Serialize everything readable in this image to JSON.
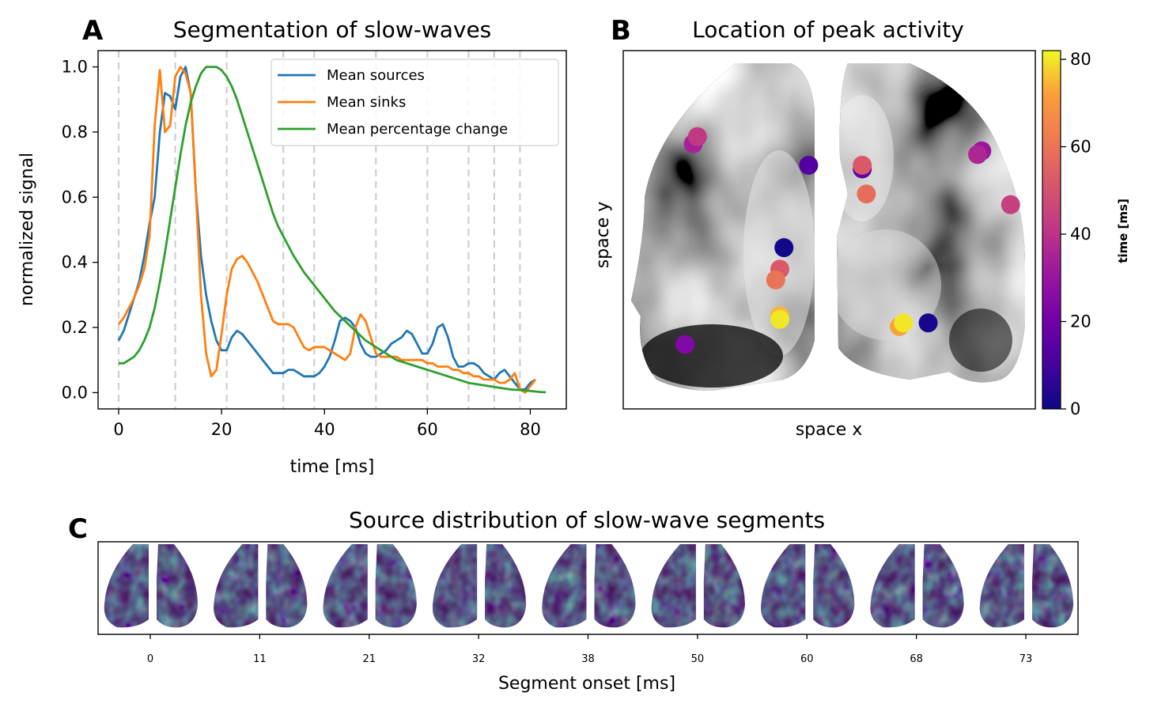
{
  "panels": {
    "a": {
      "letter": "A",
      "title": "Segmentation of slow-waves"
    },
    "b": {
      "letter": "B",
      "title": "Location of peak activity"
    },
    "c": {
      "letter": "C",
      "title": "Source distribution of slow-wave segments"
    }
  },
  "chart_data": [
    {
      "type": "line",
      "title": "Segmentation of slow-waves",
      "xlabel": "time [ms]",
      "ylabel": "normalized signal",
      "xlim": [
        -4,
        87
      ],
      "ylim": [
        -0.05,
        1.05
      ],
      "xticks": [
        0,
        20,
        40,
        60,
        80
      ],
      "xtick_labels": [
        "0",
        "20",
        "40",
        "60",
        "80"
      ],
      "yticks": [
        0.0,
        0.2,
        0.4,
        0.6,
        0.8,
        1.0
      ],
      "ytick_labels": [
        "0.0",
        "0.2",
        "0.4",
        "0.6",
        "0.8",
        "1.0"
      ],
      "segment_onsets": [
        0,
        11,
        21,
        32,
        38,
        50,
        60,
        68,
        73,
        78
      ],
      "legend_position": "top-right",
      "series": [
        {
          "name": "Mean sources",
          "color": "#1f77b4",
          "x": [
            0,
            1,
            2,
            3,
            4,
            5,
            6,
            7,
            8,
            9,
            10,
            11,
            12,
            13,
            14,
            15,
            16,
            17,
            18,
            19,
            20,
            21,
            22,
            23,
            24,
            25,
            26,
            27,
            28,
            29,
            30,
            31,
            32,
            33,
            34,
            35,
            36,
            37,
            38,
            39,
            40,
            41,
            42,
            43,
            44,
            45,
            46,
            47,
            48,
            49,
            50,
            51,
            52,
            53,
            54,
            55,
            56,
            57,
            58,
            59,
            60,
            61,
            62,
            63,
            64,
            65,
            66,
            67,
            68,
            69,
            70,
            71,
            72,
            73,
            74,
            75,
            76,
            77,
            78,
            79,
            80,
            81
          ],
          "y": [
            0.16,
            0.19,
            0.24,
            0.29,
            0.34,
            0.42,
            0.52,
            0.6,
            0.8,
            0.92,
            0.91,
            0.87,
            0.97,
            1.0,
            0.92,
            0.62,
            0.42,
            0.3,
            0.22,
            0.16,
            0.13,
            0.13,
            0.17,
            0.19,
            0.18,
            0.16,
            0.14,
            0.12,
            0.1,
            0.08,
            0.06,
            0.06,
            0.06,
            0.07,
            0.07,
            0.06,
            0.05,
            0.05,
            0.05,
            0.06,
            0.08,
            0.11,
            0.16,
            0.22,
            0.23,
            0.22,
            0.2,
            0.15,
            0.12,
            0.11,
            0.11,
            0.12,
            0.13,
            0.15,
            0.16,
            0.17,
            0.19,
            0.18,
            0.15,
            0.12,
            0.12,
            0.15,
            0.2,
            0.21,
            0.17,
            0.11,
            0.08,
            0.08,
            0.09,
            0.09,
            0.08,
            0.06,
            0.05,
            0.04,
            0.06,
            0.07,
            0.05,
            0.03,
            0.01,
            0.01,
            0.03,
            0.04
          ]
        },
        {
          "name": "Mean sinks",
          "color": "#ff7f0e",
          "x": [
            0,
            1,
            2,
            3,
            4,
            5,
            6,
            7,
            8,
            9,
            10,
            11,
            12,
            13,
            14,
            15,
            16,
            17,
            18,
            19,
            20,
            21,
            22,
            23,
            24,
            25,
            26,
            27,
            28,
            29,
            30,
            31,
            32,
            33,
            34,
            35,
            36,
            37,
            38,
            39,
            40,
            41,
            42,
            43,
            44,
            45,
            46,
            47,
            48,
            49,
            50,
            51,
            52,
            53,
            54,
            55,
            56,
            57,
            58,
            59,
            60,
            61,
            62,
            63,
            64,
            65,
            66,
            67,
            68,
            69,
            70,
            71,
            72,
            73,
            74,
            75,
            76,
            77,
            78,
            79,
            80,
            81
          ],
          "y": [
            0.21,
            0.23,
            0.26,
            0.29,
            0.33,
            0.38,
            0.48,
            0.82,
            0.99,
            0.8,
            0.82,
            0.97,
            1.0,
            0.98,
            0.92,
            0.62,
            0.3,
            0.12,
            0.05,
            0.07,
            0.18,
            0.3,
            0.38,
            0.41,
            0.42,
            0.4,
            0.37,
            0.34,
            0.3,
            0.26,
            0.22,
            0.21,
            0.21,
            0.21,
            0.2,
            0.17,
            0.14,
            0.13,
            0.14,
            0.14,
            0.14,
            0.13,
            0.12,
            0.11,
            0.1,
            0.12,
            0.2,
            0.24,
            0.22,
            0.17,
            0.12,
            0.11,
            0.11,
            0.11,
            0.11,
            0.1,
            0.1,
            0.1,
            0.1,
            0.1,
            0.09,
            0.09,
            0.08,
            0.08,
            0.08,
            0.07,
            0.07,
            0.06,
            0.06,
            0.05,
            0.05,
            0.04,
            0.04,
            0.04,
            0.03,
            0.03,
            0.04,
            0.06,
            0.01,
            0.0,
            0.02,
            0.04
          ]
        },
        {
          "name": "Mean percentage change",
          "color": "#2ca02c",
          "x": [
            0,
            1,
            2,
            3,
            4,
            5,
            6,
            7,
            8,
            9,
            10,
            11,
            12,
            13,
            14,
            15,
            16,
            17,
            18,
            19,
            20,
            21,
            22,
            23,
            24,
            25,
            26,
            27,
            28,
            29,
            30,
            31,
            32,
            33,
            34,
            36,
            38,
            40,
            42,
            44,
            46,
            48,
            50,
            52,
            54,
            56,
            58,
            60,
            62,
            64,
            66,
            68,
            70,
            72,
            74,
            76,
            78,
            80,
            82,
            83
          ],
          "y": [
            0.09,
            0.09,
            0.1,
            0.11,
            0.13,
            0.16,
            0.2,
            0.26,
            0.34,
            0.43,
            0.53,
            0.63,
            0.73,
            0.82,
            0.89,
            0.94,
            0.98,
            1.0,
            1.0,
            1.0,
            0.99,
            0.97,
            0.94,
            0.9,
            0.85,
            0.8,
            0.75,
            0.7,
            0.65,
            0.6,
            0.55,
            0.51,
            0.48,
            0.45,
            0.42,
            0.37,
            0.33,
            0.29,
            0.25,
            0.22,
            0.19,
            0.16,
            0.14,
            0.12,
            0.1,
            0.09,
            0.08,
            0.07,
            0.06,
            0.05,
            0.04,
            0.03,
            0.025,
            0.02,
            0.015,
            0.01,
            0.008,
            0.005,
            0.002,
            0.001
          ]
        }
      ]
    },
    {
      "type": "scatter",
      "title": "Location of peak activity",
      "xlabel": "space x",
      "ylabel": "space y",
      "xlim": [
        0,
        1
      ],
      "ylim": [
        0,
        1
      ],
      "colorbar": {
        "label": "time [ms]",
        "colormap": "plasma",
        "range": [
          0,
          82
        ],
        "ticks": [
          0,
          20,
          40,
          60,
          80
        ],
        "tick_labels": [
          "0",
          "20",
          "40",
          "60",
          "80"
        ]
      },
      "points": [
        {
          "x": 0.17,
          "y": 0.74,
          "t": 34
        },
        {
          "x": 0.18,
          "y": 0.76,
          "t": 42
        },
        {
          "x": 0.45,
          "y": 0.68,
          "t": 13
        },
        {
          "x": 0.39,
          "y": 0.45,
          "t": 1
        },
        {
          "x": 0.38,
          "y": 0.39,
          "t": 52
        },
        {
          "x": 0.37,
          "y": 0.36,
          "t": 60
        },
        {
          "x": 0.38,
          "y": 0.26,
          "t": 74
        },
        {
          "x": 0.38,
          "y": 0.25,
          "t": 80
        },
        {
          "x": 0.15,
          "y": 0.18,
          "t": 24
        },
        {
          "x": 0.58,
          "y": 0.67,
          "t": 16
        },
        {
          "x": 0.58,
          "y": 0.68,
          "t": 52
        },
        {
          "x": 0.59,
          "y": 0.6,
          "t": 58
        },
        {
          "x": 0.87,
          "y": 0.72,
          "t": 30
        },
        {
          "x": 0.86,
          "y": 0.71,
          "t": 36
        },
        {
          "x": 0.94,
          "y": 0.57,
          "t": 44
        },
        {
          "x": 0.67,
          "y": 0.23,
          "t": 72
        },
        {
          "x": 0.68,
          "y": 0.24,
          "t": 80
        },
        {
          "x": 0.74,
          "y": 0.24,
          "t": 2
        }
      ]
    },
    {
      "type": "heatmap",
      "title": "Source distribution of slow-wave segments",
      "xlabel": "Segment onset [ms]",
      "colormap": "viridis",
      "segment_onsets": [
        "0",
        "11",
        "21",
        "32",
        "38",
        "50",
        "60",
        "68",
        "73"
      ]
    }
  ]
}
